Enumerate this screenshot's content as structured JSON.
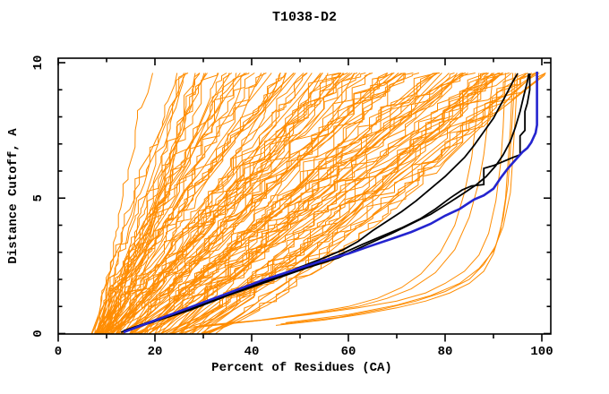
{
  "figure": {
    "title": "T1038-D2",
    "background": "#ffffff"
  },
  "chart_data": {
    "type": "line",
    "title": "T1038-D2",
    "xlabel": "Percent of Residues (CA)",
    "ylabel": "Distance Cutoff, A",
    "xlim": [
      0,
      100
    ],
    "ylim": [
      0,
      10
    ],
    "x_major_ticks": [
      0,
      20,
      40,
      60,
      80,
      100
    ],
    "x_minor_ticks": [
      10,
      30,
      50,
      70,
      90
    ],
    "y_major_ticks": [
      0,
      5,
      10
    ],
    "y_minor_ticks": [
      1,
      2,
      3,
      4,
      6,
      7,
      8,
      9
    ],
    "grid": false,
    "legend": "none",
    "frame": true,
    "colors": {
      "ensemble": "#ff8c00",
      "reference": "#000000",
      "highlight": "#2424cf",
      "axis": "#000000",
      "text": "#000000"
    },
    "series": [
      {
        "name": "server-models-ensemble",
        "role": "ensemble of predicted model accuracy curves",
        "color": "#ff8c00",
        "stroke_width": 1,
        "count": 115,
        "generator": {
          "seed": 20201038,
          "count": 115,
          "start_percent_min": 6.5,
          "start_percent_spread": 24,
          "top_percent_base": 22,
          "top_percent_spread": 80,
          "cutoff_max": 9.62,
          "max_percent": 100.8
        }
      },
      {
        "name": "low-outlier-models",
        "role": "orange outlier curves hugging the bottom axis",
        "color": "#ff8c00",
        "stroke_width": 1,
        "curves": [
          [
            [
              27,
              0.2
            ],
            [
              35,
              0.35
            ],
            [
              45,
              0.55
            ],
            [
              55,
              0.8
            ],
            [
              62,
              1.0
            ],
            [
              68,
              1.3
            ],
            [
              73,
              1.65
            ],
            [
              78,
              2.25
            ],
            [
              82,
              3.1
            ],
            [
              85,
              4.3
            ],
            [
              87,
              5.6
            ],
            [
              88,
              6.6
            ],
            [
              89,
              8.1
            ],
            [
              90,
              9.62
            ]
          ],
          [
            [
              28,
              0.25
            ],
            [
              40,
              0.45
            ],
            [
              52,
              0.7
            ],
            [
              62,
              0.95
            ],
            [
              70,
              1.2
            ],
            [
              76,
              1.5
            ],
            [
              80,
              1.85
            ],
            [
              84,
              2.3
            ],
            [
              87,
              2.9
            ],
            [
              89,
              3.7
            ],
            [
              90.5,
              4.9
            ],
            [
              91.5,
              6.3
            ],
            [
              92,
              7.6
            ],
            [
              92.5,
              9.62
            ]
          ],
          [
            [
              45,
              0.3
            ],
            [
              55,
              0.5
            ],
            [
              63,
              0.72
            ],
            [
              70,
              0.95
            ],
            [
              76,
              1.2
            ],
            [
              81,
              1.5
            ],
            [
              85,
              1.85
            ],
            [
              88,
              2.3
            ],
            [
              90,
              2.95
            ],
            [
              91.5,
              3.85
            ],
            [
              92.5,
              5.0
            ],
            [
              93,
              6.3
            ],
            [
              93.5,
              7.6
            ],
            [
              94,
              9.62
            ]
          ],
          [
            [
              46,
              0.35
            ],
            [
              58,
              0.6
            ],
            [
              67,
              0.9
            ],
            [
              74,
              1.2
            ],
            [
              80,
              1.55
            ],
            [
              85,
              2.0
            ],
            [
              88,
              2.55
            ],
            [
              90.5,
              3.25
            ],
            [
              92,
              4.25
            ],
            [
              93,
              5.5
            ],
            [
              93.5,
              6.8
            ],
            [
              94,
              8.2
            ],
            [
              94.5,
              9.62
            ]
          ],
          [
            [
              47,
              0.4
            ],
            [
              60,
              0.7
            ],
            [
              70,
              1.05
            ],
            [
              77,
              1.4
            ],
            [
              83,
              1.85
            ],
            [
              87,
              2.4
            ],
            [
              90,
              3.05
            ],
            [
              92,
              3.95
            ],
            [
              93.5,
              5.2
            ],
            [
              94,
              6.5
            ],
            [
              94.5,
              8.0
            ],
            [
              95,
              9.62
            ]
          ],
          [
            [
              30,
              0.3
            ],
            [
              42,
              0.5
            ],
            [
              52,
              0.75
            ],
            [
              60,
              1.0
            ],
            [
              66,
              1.3
            ],
            [
              71,
              1.7
            ],
            [
              75,
              2.2
            ],
            [
              79,
              3.0
            ],
            [
              82,
              4.0
            ],
            [
              84,
              5.2
            ],
            [
              85.5,
              6.5
            ],
            [
              86.5,
              8.0
            ],
            [
              87,
              9.62
            ]
          ]
        ]
      },
      {
        "name": "reference-model-1",
        "color": "#000000",
        "stroke_width": 1.8,
        "points": [
          [
            13.5,
            0.1
          ],
          [
            20,
            0.5
          ],
          [
            28,
            1.0
          ],
          [
            36,
            1.55
          ],
          [
            44,
            2.05
          ],
          [
            50,
            2.45
          ],
          [
            55,
            2.8
          ],
          [
            59,
            3.1
          ],
          [
            62,
            3.4
          ],
          [
            65,
            3.8
          ],
          [
            68,
            4.15
          ],
          [
            71,
            4.5
          ],
          [
            74,
            4.9
          ],
          [
            77,
            5.35
          ],
          [
            80,
            5.8
          ],
          [
            82,
            6.15
          ],
          [
            84,
            6.5
          ],
          [
            86,
            6.95
          ],
          [
            88,
            7.45
          ],
          [
            90,
            7.95
          ],
          [
            91.5,
            8.45
          ],
          [
            93,
            8.95
          ],
          [
            94,
            9.3
          ],
          [
            95,
            9.6
          ]
        ]
      },
      {
        "name": "reference-model-2",
        "color": "#000000",
        "stroke_width": 1.8,
        "points": [
          [
            14,
            0.1
          ],
          [
            20,
            0.45
          ],
          [
            28,
            0.95
          ],
          [
            36,
            1.5
          ],
          [
            44,
            2.0
          ],
          [
            52,
            2.5
          ],
          [
            58,
            2.9
          ],
          [
            63,
            3.3
          ],
          [
            67,
            3.6
          ],
          [
            71,
            3.9
          ],
          [
            75,
            4.25
          ],
          [
            78,
            4.6
          ],
          [
            81,
            5.0
          ],
          [
            83.5,
            5.3
          ],
          [
            85.5,
            5.45
          ],
          [
            88,
            5.5
          ],
          [
            88,
            6.1
          ],
          [
            90,
            6.2
          ],
          [
            92,
            6.35
          ],
          [
            94,
            6.5
          ],
          [
            95.5,
            6.6
          ],
          [
            95.5,
            7.3
          ],
          [
            96.5,
            7.5
          ],
          [
            96.5,
            8.2
          ],
          [
            97,
            8.5
          ],
          [
            97.5,
            9.0
          ],
          [
            97.5,
            9.6
          ]
        ]
      },
      {
        "name": "reference-model-3",
        "color": "#000000",
        "stroke_width": 1.8,
        "points": [
          [
            13,
            0.05
          ],
          [
            19,
            0.4
          ],
          [
            27,
            0.85
          ],
          [
            35,
            1.4
          ],
          [
            43,
            1.9
          ],
          [
            51,
            2.4
          ],
          [
            58,
            2.8
          ],
          [
            64,
            3.3
          ],
          [
            69,
            3.7
          ],
          [
            73,
            4.05
          ],
          [
            77,
            4.4
          ],
          [
            81,
            4.85
          ],
          [
            84,
            5.2
          ],
          [
            86.5,
            5.5
          ],
          [
            88.5,
            5.8
          ],
          [
            90.5,
            6.2
          ],
          [
            92,
            6.6
          ],
          [
            93.5,
            7.1
          ],
          [
            94.5,
            7.6
          ],
          [
            95.5,
            8.2
          ],
          [
            96.3,
            8.8
          ],
          [
            97,
            9.3
          ],
          [
            97.3,
            9.6
          ]
        ]
      },
      {
        "name": "highlighted-model",
        "color": "#2424cf",
        "stroke_width": 2.6,
        "points": [
          [
            13.5,
            0.05
          ],
          [
            18,
            0.35
          ],
          [
            24,
            0.75
          ],
          [
            30,
            1.15
          ],
          [
            36,
            1.55
          ],
          [
            42,
            1.95
          ],
          [
            48,
            2.3
          ],
          [
            54,
            2.65
          ],
          [
            60,
            2.95
          ],
          [
            64,
            3.2
          ],
          [
            69,
            3.5
          ],
          [
            73,
            3.75
          ],
          [
            77,
            4.05
          ],
          [
            80,
            4.35
          ],
          [
            83,
            4.6
          ],
          [
            86,
            4.95
          ],
          [
            88,
            5.1
          ],
          [
            90,
            5.35
          ],
          [
            91.5,
            5.75
          ],
          [
            93,
            6.1
          ],
          [
            94.5,
            6.4
          ],
          [
            96,
            6.7
          ],
          [
            97,
            6.85
          ],
          [
            97.8,
            7.05
          ],
          [
            98.7,
            7.4
          ],
          [
            99,
            7.7
          ],
          [
            99,
            9.67
          ]
        ]
      }
    ]
  }
}
